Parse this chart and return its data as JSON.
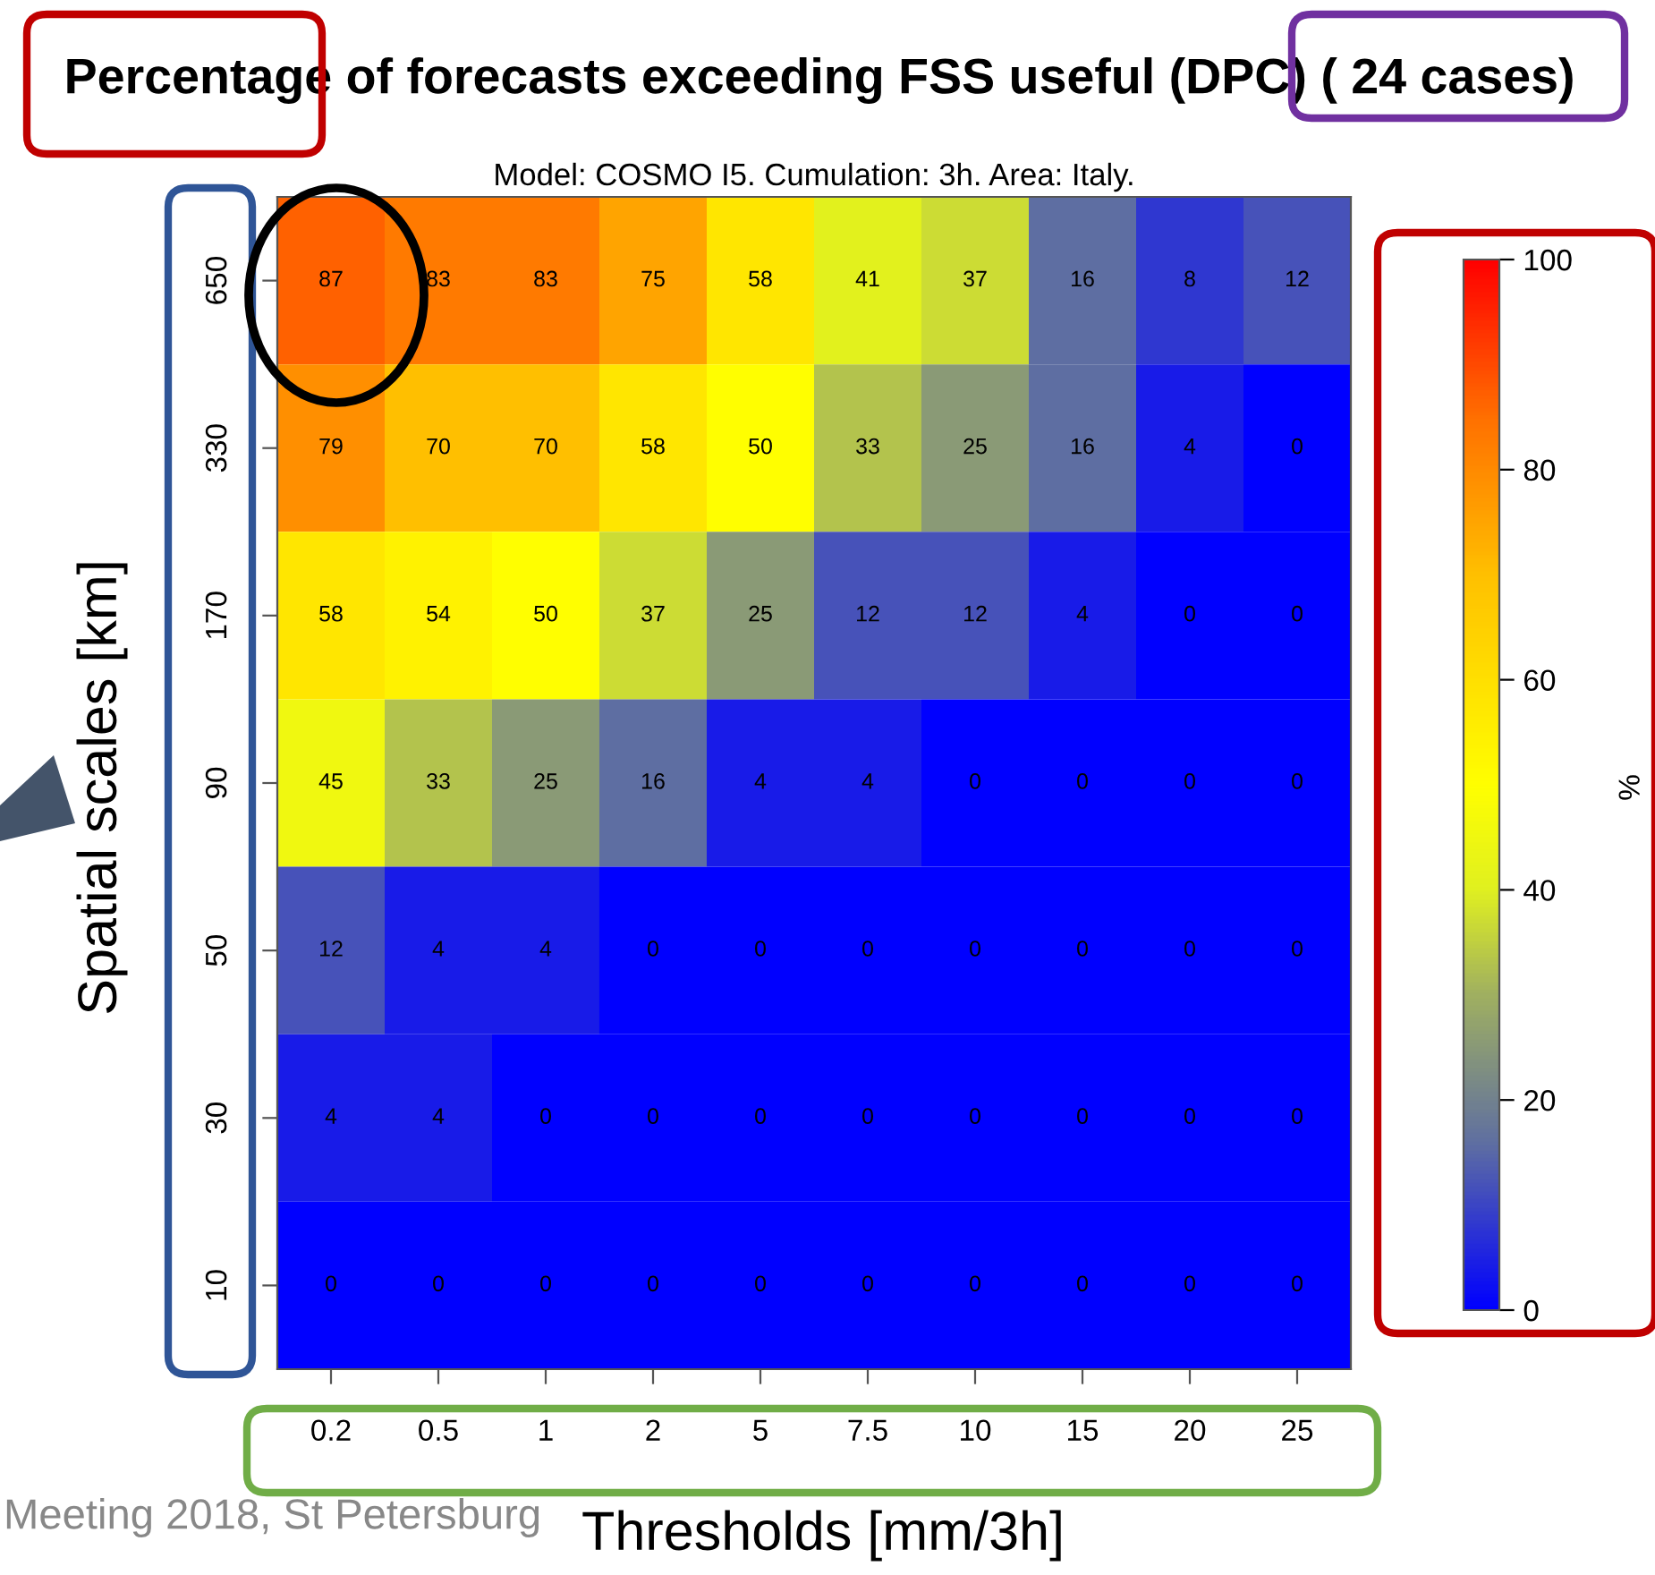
{
  "chart_data": {
    "type": "heatmap",
    "title": "Percentage of forecasts exceeding FSS useful (DPC) ( 24 cases)",
    "subtitle": "Model: COSMO I5. Cumulation: 3h. Area: Italy.",
    "xlabel": "Thresholds [mm/3h]",
    "ylabel": "Spatial scales [km]",
    "clabel": "%",
    "annotations": [
      "Meeting 2018, St Petersburg"
    ],
    "categories": [
      "0.2",
      "0.5",
      "1",
      "2",
      "5",
      "7.5",
      "10",
      "15",
      "20",
      "25"
    ],
    "y_categories": [
      "650",
      "330",
      "170",
      "90",
      "50",
      "30",
      "10"
    ],
    "cells": [
      [
        87,
        83,
        83,
        75,
        58,
        41,
        37,
        16,
        8,
        12
      ],
      [
        79,
        70,
        70,
        58,
        50,
        33,
        25,
        16,
        4,
        0
      ],
      [
        58,
        54,
        50,
        37,
        25,
        12,
        12,
        4,
        0,
        0
      ],
      [
        45,
        33,
        25,
        16,
        4,
        4,
        0,
        0,
        0,
        0
      ],
      [
        12,
        4,
        4,
        0,
        0,
        0,
        0,
        0,
        0,
        0
      ],
      [
        4,
        4,
        0,
        0,
        0,
        0,
        0,
        0,
        0,
        0
      ],
      [
        0,
        0,
        0,
        0,
        0,
        0,
        0,
        0,
        0,
        0
      ]
    ],
    "clim": [
      0,
      100
    ],
    "cticks": [
      0,
      20,
      40,
      60,
      80,
      100
    ],
    "data_labels": true
  }
}
